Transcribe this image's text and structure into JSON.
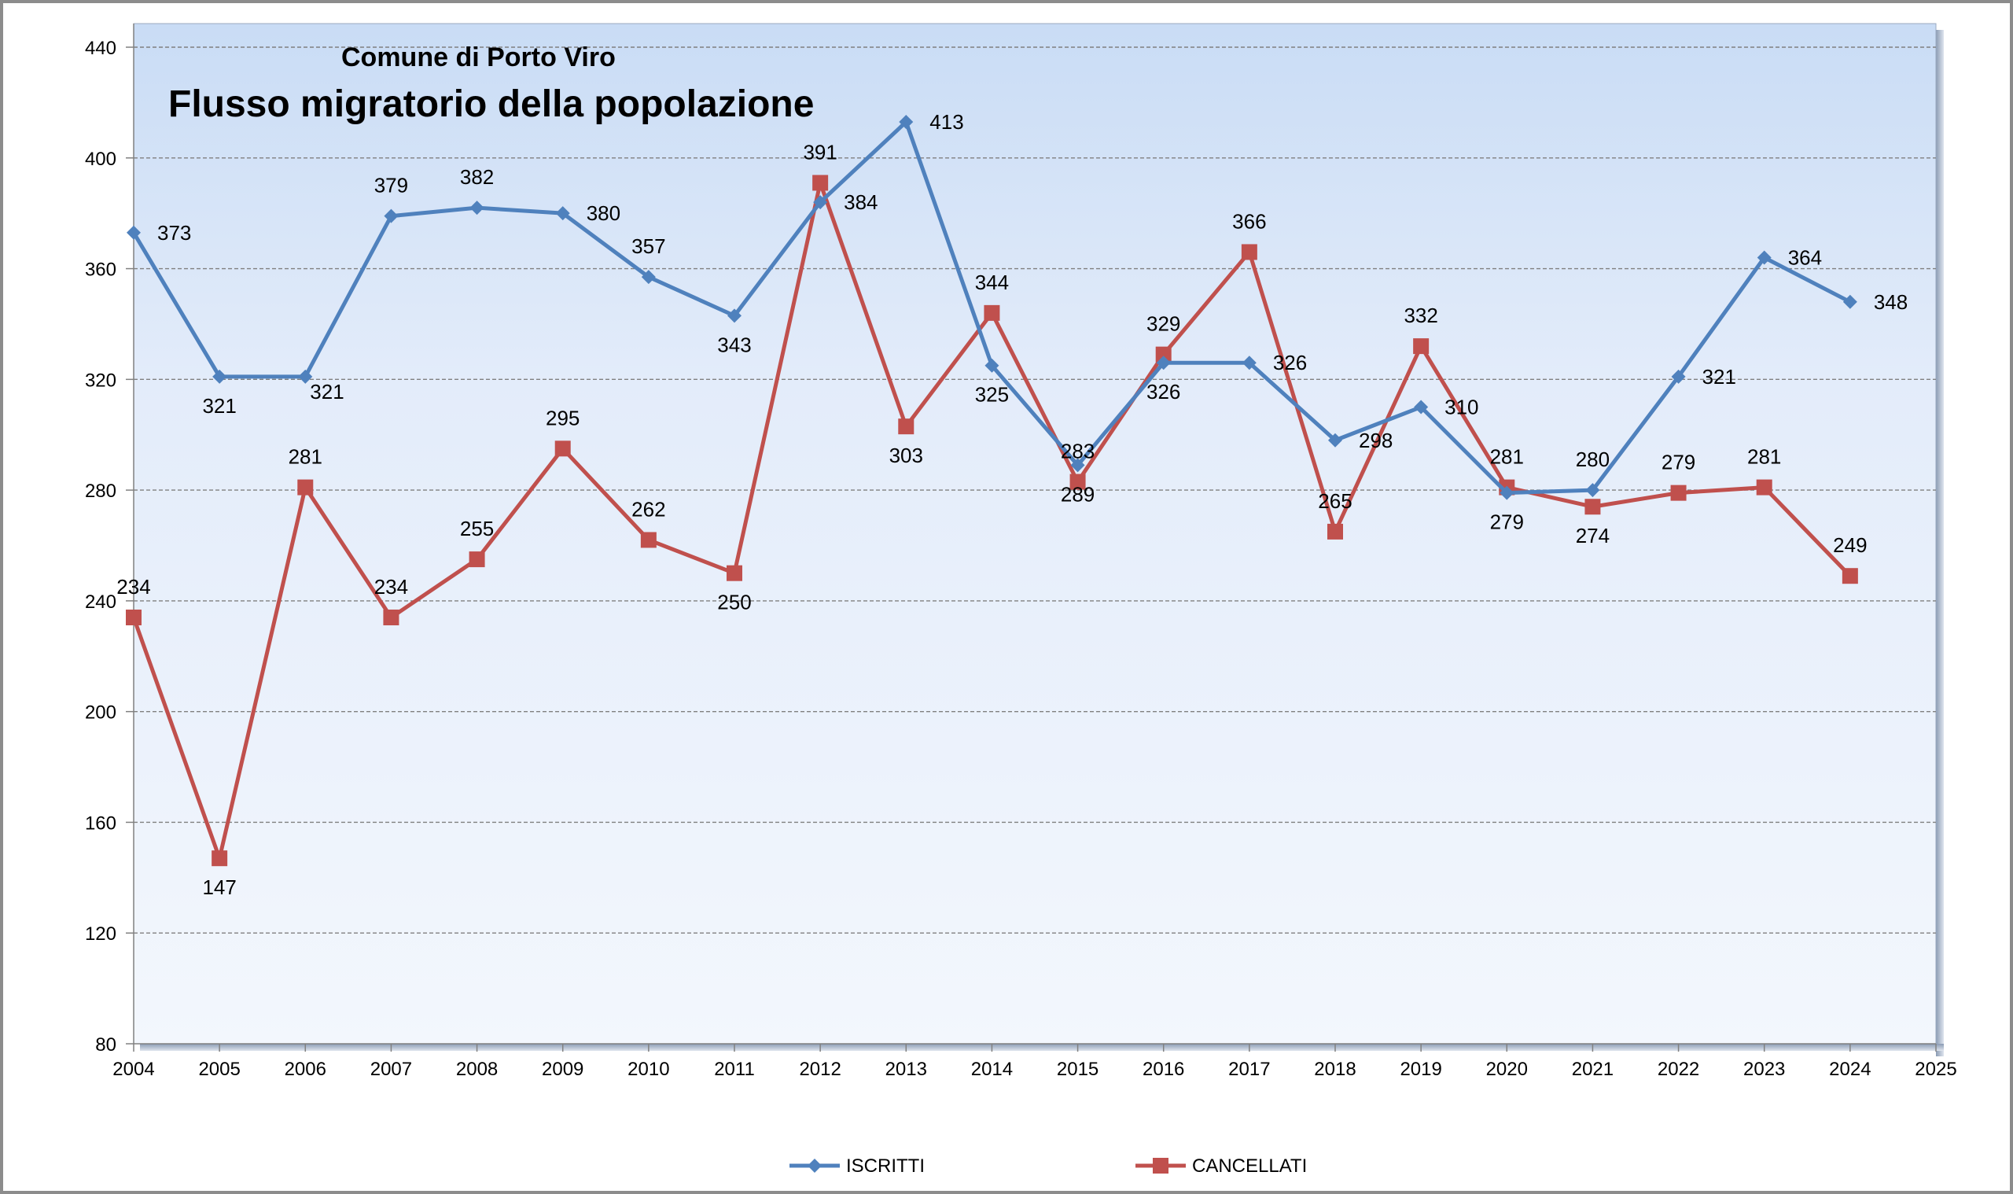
{
  "chart_data": {
    "type": "line",
    "title": "Flusso migratorio della popolazione",
    "subtitle": "Comune di Porto Viro",
    "x": [
      2004,
      2005,
      2006,
      2007,
      2008,
      2009,
      2010,
      2011,
      2012,
      2013,
      2014,
      2015,
      2016,
      2017,
      2018,
      2019,
      2020,
      2021,
      2022,
      2023,
      2024
    ],
    "x_ticks": [
      2004,
      2005,
      2006,
      2007,
      2008,
      2009,
      2010,
      2011,
      2012,
      2013,
      2014,
      2015,
      2016,
      2017,
      2018,
      2019,
      2020,
      2021,
      2022,
      2023,
      2024,
      2025
    ],
    "xlim": [
      2004,
      2025
    ],
    "ylim": [
      80,
      440
    ],
    "y_ticks": [
      80,
      120,
      160,
      200,
      240,
      280,
      320,
      360,
      400,
      440
    ],
    "grid": true,
    "legend_position": "bottom",
    "series": [
      {
        "name": "ISCRITTI",
        "color": "#4F81BD",
        "marker": "diamond",
        "values": [
          373,
          321,
          321,
          379,
          382,
          380,
          357,
          343,
          384,
          413,
          325,
          289,
          326,
          326,
          298,
          310,
          279,
          280,
          321,
          364,
          348
        ]
      },
      {
        "name": "CANCELLATI",
        "color": "#C0504D",
        "marker": "square",
        "values": [
          234,
          147,
          281,
          234,
          255,
          295,
          262,
          250,
          391,
          303,
          344,
          283,
          329,
          366,
          265,
          332,
          281,
          274,
          279,
          281,
          249
        ]
      }
    ]
  }
}
